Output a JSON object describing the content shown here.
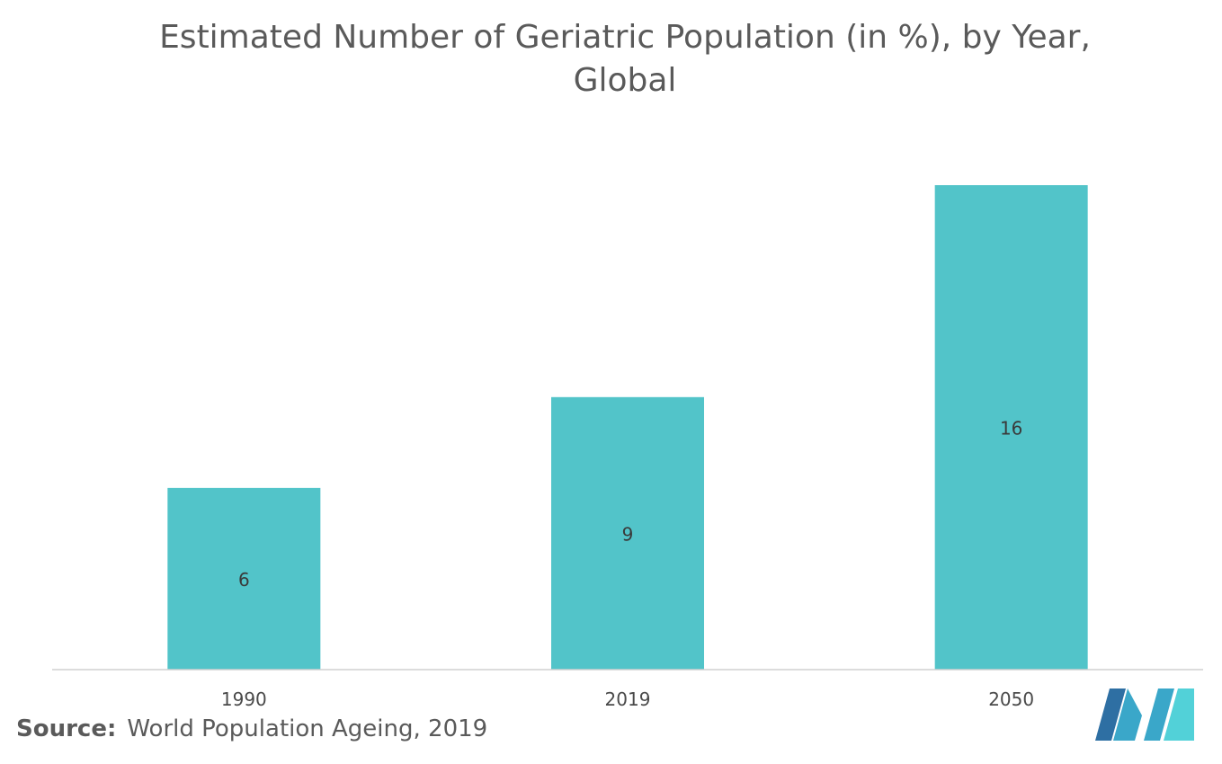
{
  "chart_data": {
    "type": "bar",
    "title": "Estimated Number of Geriatric Population (in %), by Year, Global",
    "categories": [
      "1990",
      "2019",
      "2050"
    ],
    "values": [
      6,
      9,
      16
    ],
    "data_labels": [
      "6",
      "9",
      "16"
    ],
    "xlabel": "",
    "ylabel": "",
    "ylim": [
      0,
      16.5
    ],
    "grid": false,
    "legend": "none",
    "bar_color": "#52c4c9"
  },
  "source": {
    "label": "Source:",
    "text": "World Population Ageing, 2019"
  },
  "logo": {
    "icon": "mordor-intelligence-logo",
    "colors": [
      "#2e6fa3",
      "#3aa7c9",
      "#52d1d8"
    ]
  }
}
